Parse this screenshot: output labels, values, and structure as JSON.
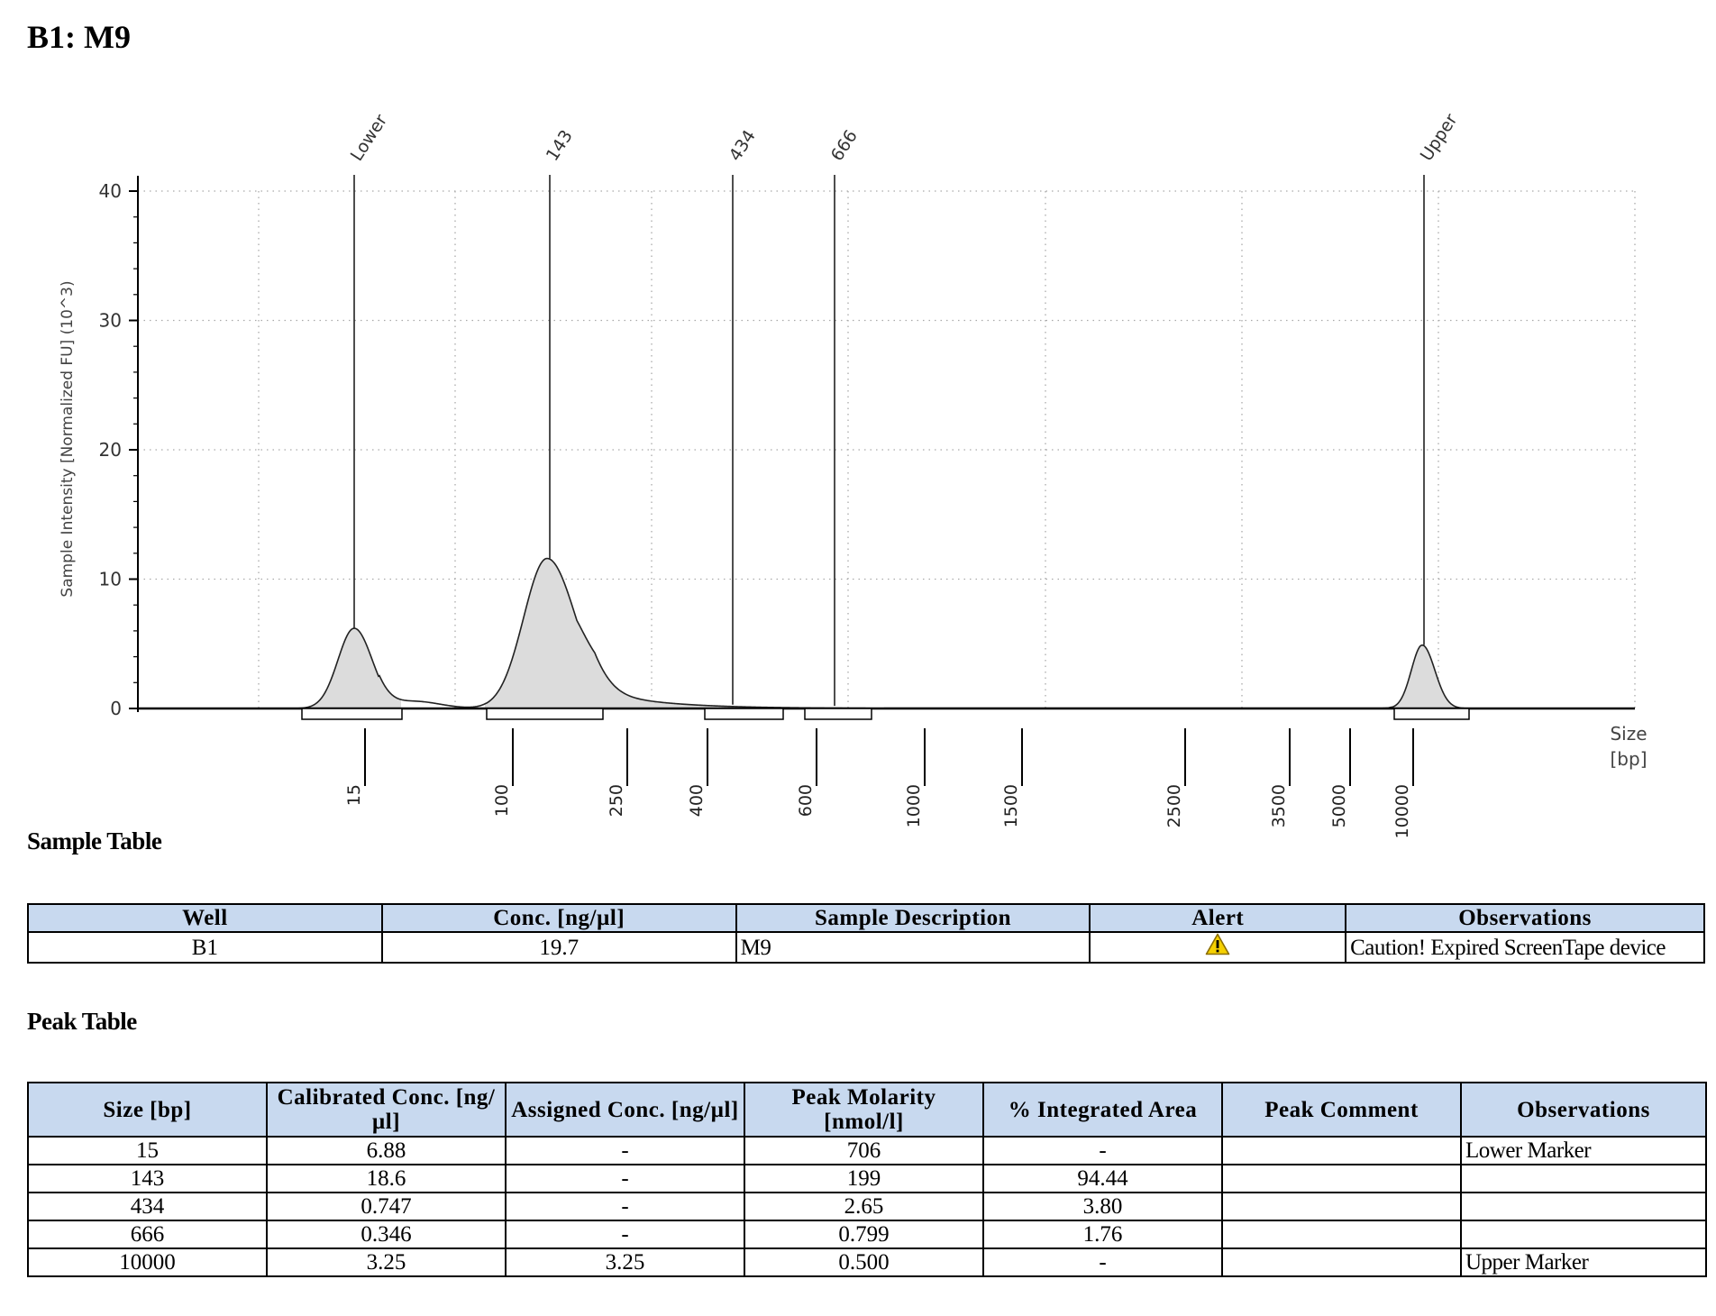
{
  "title": "B1: M9",
  "chart_data": {
    "type": "line",
    "ylabel": "Sample Intensity [Normalized FU] (10^3)",
    "xlabel": "Size",
    "xunit": "[bp]",
    "ylim": [
      0,
      40
    ],
    "yticks": [
      "0",
      "10",
      "20",
      "30",
      "40"
    ],
    "xticks": [
      "15",
      "100",
      "250",
      "400",
      "600",
      "1000",
      "1500",
      "2500",
      "3500",
      "5000",
      "10000"
    ],
    "grid": true,
    "peaks": [
      {
        "label": "Lower",
        "size": 15,
        "height": 6.2
      },
      {
        "label": "143",
        "size": 143,
        "height": 11.6
      },
      {
        "label": "434",
        "size": 434,
        "height": 0.3
      },
      {
        "label": "666",
        "size": 666,
        "height": 0.2
      },
      {
        "label": "Upper",
        "size": 10000,
        "height": 4.9
      }
    ]
  },
  "sample_table": {
    "title": "Sample Table",
    "headers": [
      "Well",
      "Conc. [ng/µl]",
      "Sample Description",
      "Alert",
      "Observations"
    ],
    "rows": [
      {
        "well": "B1",
        "conc": "19.7",
        "description": "M9",
        "alert_icon": "warning-triangle",
        "observations": "Caution! Expired ScreenTape device"
      }
    ]
  },
  "peak_table": {
    "title": "Peak Table",
    "headers": [
      "Size [bp]",
      "Calibrated Conc. [ng/µl]",
      "Assigned Conc. [ng/µl]",
      "Peak Molarity [nmol/l]",
      "% Integrated Area",
      "Peak Comment",
      "Observations"
    ],
    "rows": [
      [
        "15",
        "6.88",
        "-",
        "706",
        "-",
        "",
        "Lower Marker"
      ],
      [
        "143",
        "18.6",
        "-",
        "199",
        "94.44",
        "",
        ""
      ],
      [
        "434",
        "0.747",
        "-",
        "2.65",
        "3.80",
        "",
        ""
      ],
      [
        "666",
        "0.346",
        "-",
        "0.799",
        "1.76",
        "",
        ""
      ],
      [
        "10000",
        "3.25",
        "3.25",
        "0.500",
        "-",
        "",
        "Upper Marker"
      ]
    ]
  },
  "colors": {
    "header_fill": "#c8d9ef",
    "peak_fill": "#dcdcdc",
    "warning": "#f5d000"
  }
}
